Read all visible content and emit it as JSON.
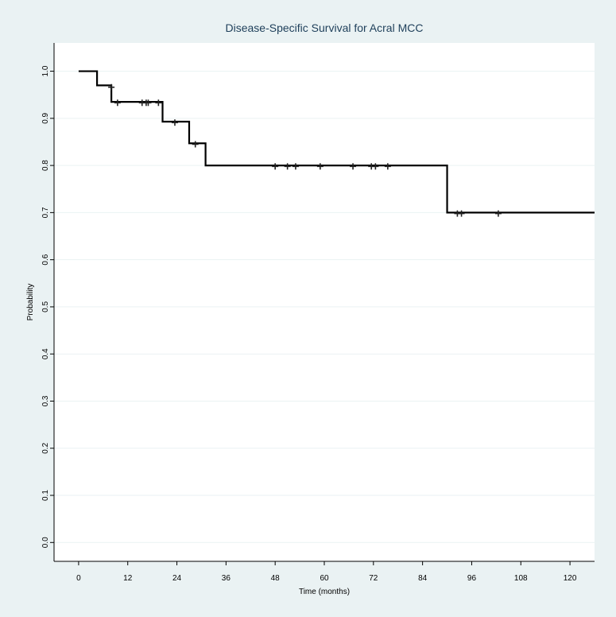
{
  "chart_data": {
    "type": "line",
    "title": "Disease-Specific Survival for Acral MCC",
    "xlabel": "Time (months)",
    "ylabel": "Probability",
    "xlim": [
      -6,
      126
    ],
    "ylim": [
      -0.04,
      1.06
    ],
    "x_ticks": [
      0,
      12,
      24,
      36,
      48,
      60,
      72,
      84,
      96,
      108,
      120
    ],
    "x_tick_labels": [
      "0",
      "12",
      "24",
      "36",
      "48",
      "60",
      "72",
      "84",
      "96",
      "108",
      "120"
    ],
    "y_ticks": [
      0.0,
      0.1,
      0.2,
      0.3,
      0.4,
      0.5,
      0.6,
      0.7,
      0.8,
      0.9,
      1.0
    ],
    "y_tick_labels": [
      "0.0",
      "0.1",
      "0.2",
      "0.3",
      "0.4",
      "0.5",
      "0.6",
      "0.7",
      "0.8",
      "0.9",
      "1.0"
    ],
    "grid": "horizontal",
    "series": [
      {
        "style": "step",
        "x": [
          0,
          4.5,
          8,
          20.5,
          27,
          31,
          90,
          126
        ],
        "y": [
          1.0,
          0.97,
          0.935,
          0.893,
          0.847,
          0.8,
          0.7,
          0.7
        ]
      }
    ],
    "censored": [
      {
        "x": 8,
        "y": 0.966
      },
      {
        "x": 9.5,
        "y": 0.933
      },
      {
        "x": 15.5,
        "y": 0.933
      },
      {
        "x": 16.5,
        "y": 0.933
      },
      {
        "x": 17,
        "y": 0.933
      },
      {
        "x": 19.5,
        "y": 0.933
      },
      {
        "x": 23.5,
        "y": 0.891
      },
      {
        "x": 28.5,
        "y": 0.845
      },
      {
        "x": 48,
        "y": 0.798
      },
      {
        "x": 51,
        "y": 0.798
      },
      {
        "x": 53,
        "y": 0.798
      },
      {
        "x": 59,
        "y": 0.798
      },
      {
        "x": 67,
        "y": 0.798
      },
      {
        "x": 71.5,
        "y": 0.798
      },
      {
        "x": 72.5,
        "y": 0.798
      },
      {
        "x": 75.5,
        "y": 0.798
      },
      {
        "x": 92.5,
        "y": 0.698
      },
      {
        "x": 93.5,
        "y": 0.698
      },
      {
        "x": 102.5,
        "y": 0.698
      }
    ],
    "colors": {
      "background": "#eaf2f3",
      "plot_area": "#ffffff",
      "title": "#1e3f5a",
      "line": "#000000",
      "grid": "#eaf2f3"
    }
  }
}
